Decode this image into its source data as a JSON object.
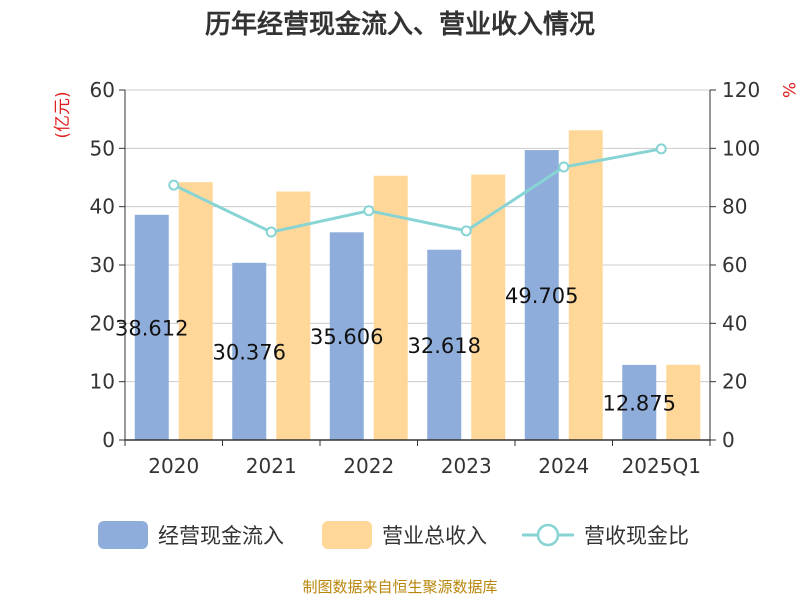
{
  "chart_data": {
    "type": "bar",
    "title": "历年经营现金流入、营业收入情况",
    "categories": [
      "2020",
      "2021",
      "2022",
      "2023",
      "2024",
      "2025Q1"
    ],
    "series": [
      {
        "name": "经营现金流入",
        "kind": "bar",
        "axis": "left",
        "color": "#8eaddb",
        "values": [
          38.612,
          30.376,
          35.606,
          32.618,
          49.705,
          12.875
        ],
        "labels": [
          "38.612",
          "30.376",
          "35.606",
          "32.618",
          "49.705",
          "12.875"
        ]
      },
      {
        "name": "营业总收入",
        "kind": "bar",
        "axis": "left",
        "color": "#ffd899",
        "values": [
          44.2,
          42.6,
          45.3,
          45.5,
          53.1,
          12.9
        ]
      },
      {
        "name": "营收现金比",
        "kind": "line",
        "axis": "right",
        "color": "#88d4d4",
        "values": [
          87.4,
          71.3,
          78.6,
          71.7,
          93.6,
          99.8
        ]
      }
    ],
    "y_left": {
      "label": "(亿元)",
      "min": 0,
      "max": 60,
      "ticks": [
        0,
        10,
        20,
        30,
        40,
        50,
        60
      ]
    },
    "y_right": {
      "label": "%",
      "min": 0,
      "max": 120,
      "ticks": [
        0,
        20,
        40,
        60,
        80,
        100,
        120
      ]
    },
    "grid": true,
    "legend": "bottom"
  },
  "source": "制图数据来自恒生聚源数据库"
}
